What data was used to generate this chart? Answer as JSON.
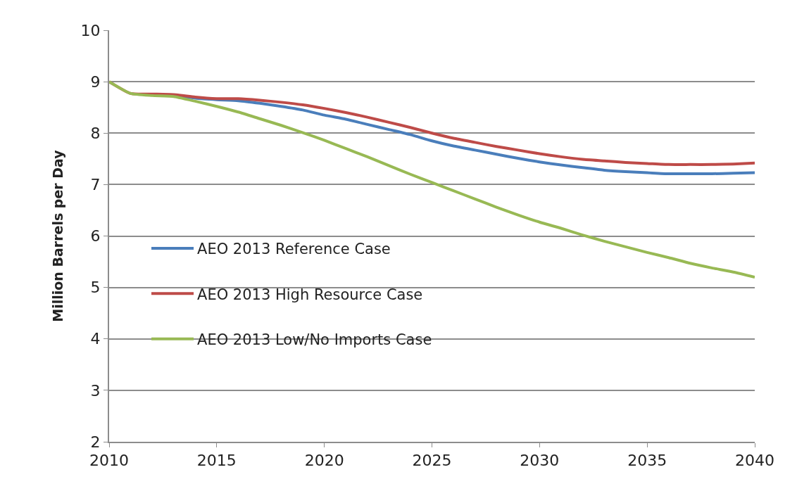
{
  "chart_data": {
    "type": "line",
    "ylabel": "Million Barrels per Day",
    "x": [
      2010,
      2011,
      2012,
      2013,
      2014,
      2015,
      2016,
      2017,
      2018,
      2019,
      2020,
      2021,
      2022,
      2023,
      2024,
      2025,
      2026,
      2027,
      2028,
      2029,
      2030,
      2031,
      2032,
      2033,
      2034,
      2035,
      2036,
      2037,
      2038,
      2039,
      2040
    ],
    "series": [
      {
        "name": "AEO 2013 Reference Case",
        "color": "#4a7ebb",
        "values": [
          null,
          null,
          null,
          8.74,
          8.68,
          8.65,
          8.63,
          8.58,
          8.52,
          8.45,
          8.35,
          8.27,
          8.17,
          8.07,
          7.97,
          7.85,
          7.75,
          7.67,
          7.59,
          7.51,
          7.44,
          7.38,
          7.33,
          7.28,
          7.25,
          7.23,
          7.21,
          7.21,
          7.21,
          7.22,
          7.23
        ]
      },
      {
        "name": "AEO 2013 High Resource Case",
        "color": "#be4b48",
        "values": [
          9.0,
          8.77,
          8.76,
          8.75,
          8.7,
          8.67,
          8.67,
          8.64,
          8.6,
          8.55,
          8.48,
          8.4,
          8.31,
          8.21,
          8.11,
          8.0,
          7.9,
          7.82,
          7.74,
          7.67,
          7.6,
          7.54,
          7.49,
          7.46,
          7.43,
          7.41,
          7.39,
          7.39,
          7.39,
          7.4,
          7.42
        ]
      },
      {
        "name": "AEO 2013 Low/No Imports Case",
        "color": "#98b954",
        "values": [
          9.0,
          8.77,
          8.73,
          8.71,
          8.62,
          8.52,
          8.41,
          8.28,
          8.15,
          8.01,
          7.86,
          7.7,
          7.54,
          7.37,
          7.2,
          7.04,
          6.88,
          6.72,
          6.56,
          6.41,
          6.27,
          6.15,
          6.02,
          5.9,
          5.79,
          5.68,
          5.58,
          5.47,
          5.38,
          5.3,
          5.2
        ]
      }
    ],
    "xlim": [
      2010,
      2040
    ],
    "xticks": [
      2010,
      2015,
      2020,
      2025,
      2030,
      2035,
      2040
    ],
    "ylim": [
      2,
      10
    ],
    "yticks": [
      2,
      3,
      4,
      5,
      6,
      7,
      8,
      9,
      10
    ],
    "grid": "y",
    "legend": "left",
    "marker": "none",
    "line_style": "solid"
  }
}
